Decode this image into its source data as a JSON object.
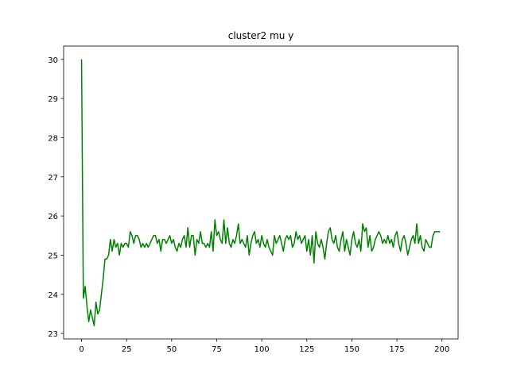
{
  "chart_data": {
    "type": "line",
    "title": "cluster2 mu y",
    "x": [
      0,
      1,
      2,
      3,
      4,
      5,
      6,
      7,
      8,
      9,
      10,
      11,
      12,
      13,
      14,
      15,
      16,
      17,
      18,
      19,
      20,
      21,
      22,
      23,
      24,
      25,
      26,
      27,
      28,
      29,
      30,
      31,
      32,
      33,
      34,
      35,
      36,
      37,
      38,
      39,
      40,
      41,
      42,
      43,
      44,
      45,
      46,
      47,
      48,
      49,
      50,
      51,
      52,
      53,
      54,
      55,
      56,
      57,
      58,
      59,
      60,
      61,
      62,
      63,
      64,
      65,
      66,
      67,
      68,
      69,
      70,
      71,
      72,
      73,
      74,
      75,
      76,
      77,
      78,
      79,
      80,
      81,
      82,
      83,
      84,
      85,
      86,
      87,
      88,
      89,
      90,
      91,
      92,
      93,
      94,
      95,
      96,
      97,
      98,
      99,
      100,
      101,
      102,
      103,
      104,
      105,
      106,
      107,
      108,
      109,
      110,
      111,
      112,
      113,
      114,
      115,
      116,
      117,
      118,
      119,
      120,
      121,
      122,
      123,
      124,
      125,
      126,
      127,
      128,
      129,
      130,
      131,
      132,
      133,
      134,
      135,
      136,
      137,
      138,
      139,
      140,
      141,
      142,
      143,
      144,
      145,
      146,
      147,
      148,
      149,
      150,
      151,
      152,
      153,
      154,
      155,
      156,
      157,
      158,
      159,
      160,
      161,
      162,
      163,
      164,
      165,
      166,
      167,
      168,
      169,
      170,
      171,
      172,
      173,
      174,
      175,
      176,
      177,
      178,
      179,
      180,
      181,
      182,
      183,
      184,
      185,
      186,
      187,
      188,
      189,
      190,
      191,
      192,
      193,
      194,
      195,
      196,
      197,
      198,
      199
    ],
    "series": [
      {
        "color": "#008000",
        "values": [
          30.0,
          23.9,
          24.2,
          23.7,
          23.3,
          23.6,
          23.4,
          23.2,
          23.8,
          23.5,
          23.6,
          24.0,
          24.4,
          24.9,
          24.9,
          25.0,
          25.4,
          25.1,
          25.4,
          25.2,
          25.3,
          25.0,
          25.3,
          25.2,
          25.3,
          25.3,
          25.2,
          25.6,
          25.5,
          25.3,
          25.5,
          25.5,
          25.4,
          25.2,
          25.3,
          25.2,
          25.3,
          25.2,
          25.3,
          25.4,
          25.5,
          25.5,
          25.3,
          25.4,
          25.1,
          25.4,
          25.4,
          25.3,
          25.4,
          25.5,
          25.3,
          25.4,
          25.2,
          25.1,
          25.3,
          25.2,
          25.4,
          25.5,
          25.2,
          25.7,
          25.2,
          25.5,
          25.5,
          25.0,
          25.4,
          25.3,
          25.6,
          25.3,
          25.3,
          25.2,
          25.3,
          25.2,
          25.6,
          25.1,
          25.9,
          25.5,
          25.6,
          25.4,
          25.3,
          25.9,
          25.3,
          25.7,
          25.3,
          25.2,
          25.4,
          25.3,
          25.5,
          25.8,
          25.3,
          25.4,
          25.3,
          25.2,
          25.5,
          25.0,
          25.3,
          25.5,
          25.6,
          25.3,
          25.4,
          25.2,
          25.5,
          25.3,
          25.2,
          25.4,
          25.2,
          25.1,
          25.0,
          25.5,
          25.3,
          25.4,
          25.5,
          25.3,
          25.1,
          25.4,
          25.5,
          25.4,
          25.5,
          25.2,
          25.3,
          25.6,
          25.4,
          25.5,
          25.3,
          25.4,
          25.5,
          25.1,
          25.4,
          25.0,
          25.5,
          24.8,
          25.6,
          25.3,
          25.2,
          25.4,
          25.2,
          24.9,
          25.3,
          25.6,
          25.7,
          25.4,
          25.3,
          25.5,
          25.2,
          25.1,
          25.4,
          25.6,
          25.1,
          25.4,
          25.2,
          25.0,
          25.4,
          25.6,
          25.3,
          25.2,
          25.4,
          25.1,
          25.8,
          25.6,
          25.7,
          25.2,
          25.5,
          25.1,
          25.2,
          25.4,
          25.5,
          25.6,
          25.5,
          25.3,
          25.4,
          25.3,
          25.5,
          25.3,
          25.4,
          25.2,
          25.5,
          25.6,
          25.3,
          25.1,
          25.4,
          25.5,
          25.3,
          25.0,
          25.2,
          25.4,
          25.5,
          25.3,
          25.8,
          25.3,
          25.5,
          25.2,
          25.1,
          25.4,
          25.3,
          25.2,
          25.2,
          25.5,
          25.6,
          25.6,
          25.6,
          25.6
        ]
      }
    ],
    "xlim": [
      -9.95,
      208.95
    ],
    "ylim": [
      22.86,
      30.34
    ],
    "xticks": [
      0,
      25,
      50,
      75,
      100,
      125,
      150,
      175,
      200
    ],
    "yticks": [
      23,
      24,
      25,
      26,
      27,
      28,
      29,
      30
    ]
  }
}
